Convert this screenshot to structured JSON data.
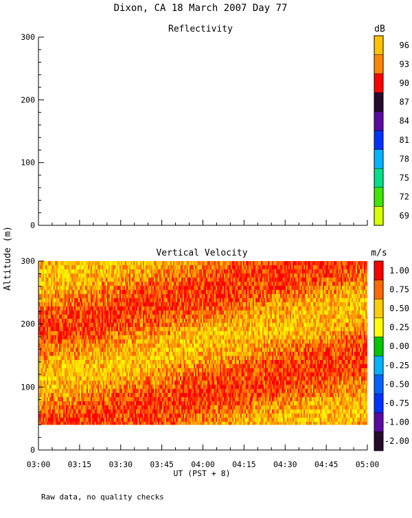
{
  "title": "Dixon, CA 18 March 2007  Day  77",
  "y_axis_label": "Altitude (m)",
  "x_axis_label": "UT  (PST + 8)",
  "footer_note": "Raw data, no quality checks",
  "x_tick_labels": [
    "03:00",
    "03:15",
    "03:30",
    "03:45",
    "04:00",
    "04:15",
    "04:30",
    "04:45",
    "05:00"
  ],
  "colors": {
    "reflectivity_scale": [
      "#d8ff00",
      "#41e600",
      "#00e08a",
      "#00b4ff",
      "#0032ff",
      "#5a0aa0",
      "#280a2d",
      "#ff0000",
      "#ff8700",
      "#ffc300"
    ],
    "velocity_scale": [
      "#280a2d",
      "#5a0aa0",
      "#0032ff",
      "#0064ff",
      "#00b4ff",
      "#00c800",
      "#ffff00",
      "#ffcc00",
      "#ff6a00",
      "#ff0000"
    ]
  },
  "chart_data": [
    {
      "type": "heatmap",
      "title": "Reflectivity",
      "ylabel": "Altitude (m)",
      "xlim": [
        "03:00",
        "05:00"
      ],
      "ylim": [
        0,
        300
      ],
      "y_ticks": [
        0,
        100,
        200,
        300
      ],
      "x_ticks": [
        "03:00",
        "03:15",
        "03:30",
        "03:45",
        "04:00",
        "04:15",
        "04:30",
        "04:45",
        "05:00"
      ],
      "colorbar": {
        "unit": "dB",
        "tick_labels": [
          "69",
          "72",
          "75",
          "78",
          "81",
          "84",
          "87",
          "90",
          "93",
          "96"
        ]
      },
      "data": []
    },
    {
      "type": "heatmap",
      "title": "Vertical Velocity",
      "xlabel": "UT  (PST + 8)",
      "ylabel": "Altitude (m)",
      "xlim": [
        "03:00",
        "05:00"
      ],
      "ylim": [
        0,
        300
      ],
      "y_ticks": [
        0,
        100,
        200,
        300
      ],
      "x_ticks": [
        "03:00",
        "03:15",
        "03:30",
        "03:45",
        "04:00",
        "04:15",
        "04:30",
        "04:45",
        "05:00"
      ],
      "data_altitude_range": [
        40,
        300
      ],
      "dominant_values": "0.50 to 1.00 m/s",
      "colorbar": {
        "unit": "m/s",
        "tick_labels": [
          "-2.00",
          "-1.00",
          "-0.75",
          "-0.50",
          "-0.25",
          "0.00",
          "0.25",
          "0.50",
          "0.75",
          "1.00"
        ]
      }
    }
  ]
}
